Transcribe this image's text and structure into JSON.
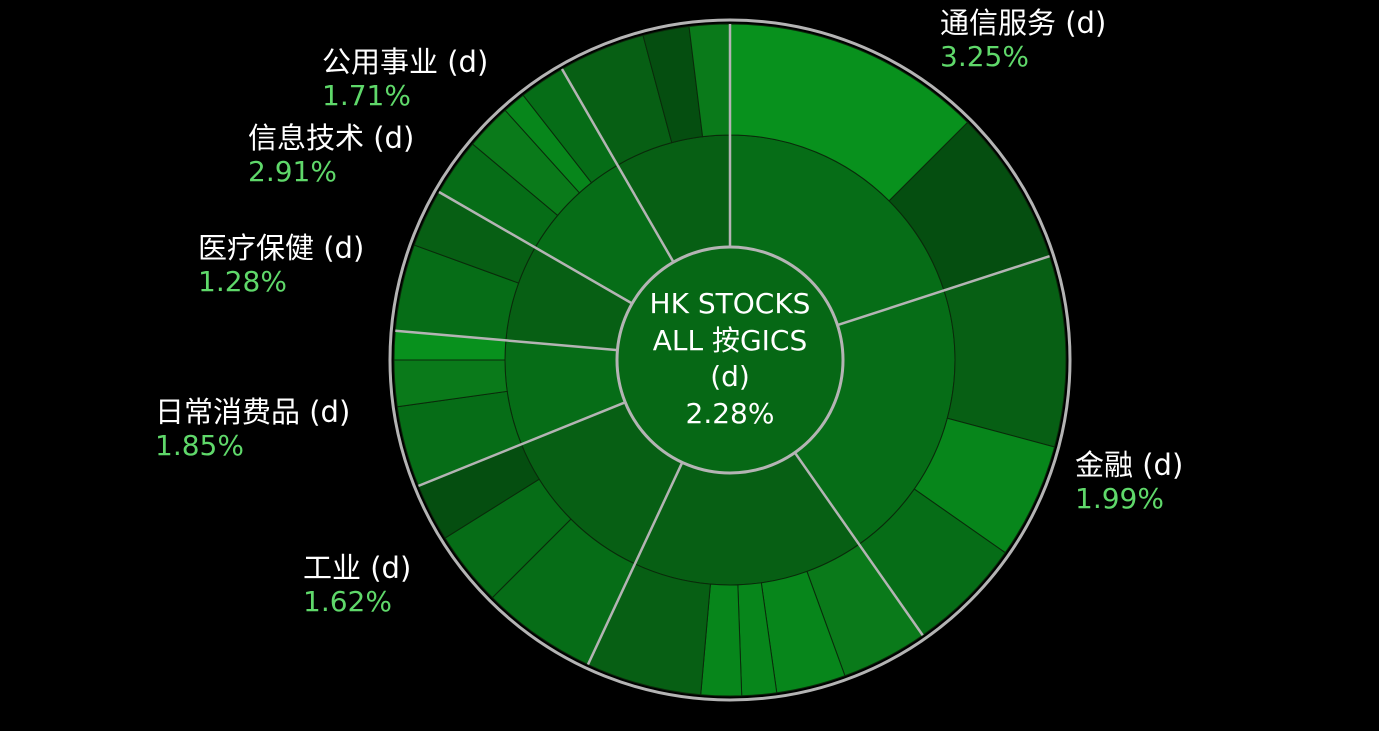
{
  "chart_data": {
    "type": "sunburst",
    "title": "",
    "center": {
      "lines": [
        "HK STOCKS",
        "ALL 按GICS",
        "(d)"
      ],
      "value": "2.28%"
    },
    "colors": {
      "background": "#000000",
      "ring_border": "#b4b4b4",
      "label_text": "#ffffff",
      "value_text": "#5fd86a"
    },
    "sectors": [
      {
        "name": "通信服务 (d)",
        "change": "3.25%",
        "change_value": 3.25
      },
      {
        "name": "金融 (d)",
        "change": "1.99%",
        "change_value": 1.99
      },
      {
        "name": "工业 (d)",
        "change": "1.62%",
        "change_value": 1.62
      },
      {
        "name": "日常消费品 (d)",
        "change": "1.85%",
        "change_value": 1.85
      },
      {
        "name": "医疗保健 (d)",
        "change": "1.28%",
        "change_value": 1.28
      },
      {
        "name": "信息技术 (d)",
        "change": "2.91%",
        "change_value": 2.91
      },
      {
        "name": "公用事业 (d)",
        "change": "1.71%",
        "change_value": 1.71
      }
    ]
  }
}
